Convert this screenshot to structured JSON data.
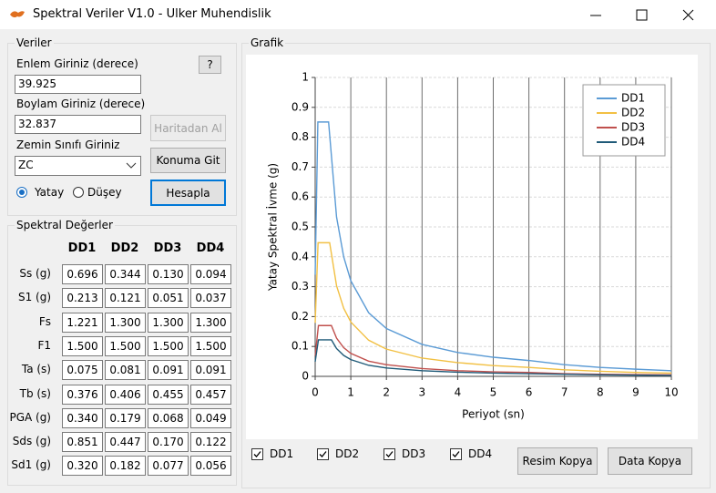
{
  "window": {
    "title": "Spektral Veriler V1.0 - Ulker Muhendislik"
  },
  "inputs": {
    "group_title": "Veriler",
    "latitude_label": "Enlem Giriniz (derece)",
    "latitude": "39.925",
    "longitude_label": "Boylam Giriniz (derece)",
    "longitude": "32.837",
    "soil_label": "Zemin Sınıfı Giriniz",
    "soil": "ZC",
    "radio": [
      "Yatay",
      "Düşey"
    ],
    "help_button": "?",
    "map_button": "Haritadan Al",
    "goto_button": "Konuma Git",
    "calc_button": "Hesapla"
  },
  "results": {
    "group_title": "Spektral Değerler",
    "columns": [
      "DD1",
      "DD2",
      "DD3",
      "DD4"
    ],
    "rows": [
      {
        "label": "Ss (g)",
        "cells": [
          "0.696",
          "0.344",
          "0.130",
          "0.094"
        ]
      },
      {
        "label": "S1 (g)",
        "cells": [
          "0.213",
          "0.121",
          "0.051",
          "0.037"
        ]
      },
      {
        "label": "Fs",
        "cells": [
          "1.221",
          "1.300",
          "1.300",
          "1.300"
        ]
      },
      {
        "label": "F1",
        "cells": [
          "1.500",
          "1.500",
          "1.500",
          "1.500"
        ]
      },
      {
        "label": "Ta (s)",
        "cells": [
          "0.075",
          "0.081",
          "0.091",
          "0.091"
        ]
      },
      {
        "label": "Tb (s)",
        "cells": [
          "0.376",
          "0.406",
          "0.455",
          "0.457"
        ]
      },
      {
        "label": "PGA (g)",
        "cells": [
          "0.340",
          "0.179",
          "0.068",
          "0.049"
        ]
      },
      {
        "label": "Sds (g)",
        "cells": [
          "0.851",
          "0.447",
          "0.170",
          "0.122"
        ]
      },
      {
        "label": "Sd1 (g)",
        "cells": [
          "0.320",
          "0.182",
          "0.077",
          "0.056"
        ]
      }
    ]
  },
  "graph": {
    "group_title": "Grafik",
    "checkboxes": [
      "DD1",
      "DD2",
      "DD3",
      "DD4"
    ],
    "copy_image": "Resim Kopya",
    "copy_data": "Data Kopya"
  },
  "chart_data": {
    "type": "line",
    "x_label": "Periyot (sn)",
    "y_label": "Yatay Spektral İvme (g)",
    "xlim": [
      0,
      10
    ],
    "xticks": [
      0,
      1,
      2,
      3,
      4,
      5,
      6,
      7,
      8,
      9,
      10
    ],
    "ylim": [
      0,
      1
    ],
    "yticks": [
      0,
      0.1,
      0.2,
      0.3,
      0.4,
      0.5,
      0.6,
      0.7,
      0.8,
      0.9,
      1
    ],
    "grid": true,
    "legend": "top-right",
    "series": [
      {
        "name": "DD1",
        "color": "#5b9bd5",
        "x": [
          0,
          0.075,
          0.376,
          0.6,
          0.8,
          1,
          1.5,
          2,
          3,
          4,
          5,
          6,
          7,
          8,
          9,
          10
        ],
        "values": [
          0.34,
          0.851,
          0.851,
          0.533,
          0.4,
          0.32,
          0.213,
          0.16,
          0.107,
          0.08,
          0.064,
          0.053,
          0.039,
          0.03,
          0.024,
          0.019
        ]
      },
      {
        "name": "DD2",
        "color": "#f2c043",
        "x": [
          0,
          0.081,
          0.406,
          0.6,
          0.8,
          1,
          1.5,
          2,
          3,
          4,
          5,
          6,
          7,
          8,
          9,
          10
        ],
        "values": [
          0.179,
          0.447,
          0.447,
          0.303,
          0.228,
          0.182,
          0.121,
          0.091,
          0.061,
          0.046,
          0.036,
          0.03,
          0.022,
          0.017,
          0.013,
          0.011
        ]
      },
      {
        "name": "DD3",
        "color": "#c0504d",
        "x": [
          0,
          0.091,
          0.455,
          0.6,
          0.8,
          1,
          1.5,
          2,
          3,
          4,
          5,
          6,
          7,
          8,
          9,
          10
        ],
        "values": [
          0.068,
          0.17,
          0.17,
          0.128,
          0.096,
          0.077,
          0.051,
          0.039,
          0.026,
          0.019,
          0.015,
          0.013,
          0.009,
          0.007,
          0.006,
          0.005
        ]
      },
      {
        "name": "DD4",
        "color": "#1f5a78",
        "x": [
          0,
          0.091,
          0.457,
          0.6,
          0.8,
          1,
          1.5,
          2,
          3,
          4,
          5,
          6,
          7,
          8,
          9,
          10
        ],
        "values": [
          0.049,
          0.122,
          0.122,
          0.093,
          0.07,
          0.056,
          0.037,
          0.028,
          0.019,
          0.014,
          0.011,
          0.009,
          0.007,
          0.005,
          0.004,
          0.003
        ]
      }
    ]
  }
}
